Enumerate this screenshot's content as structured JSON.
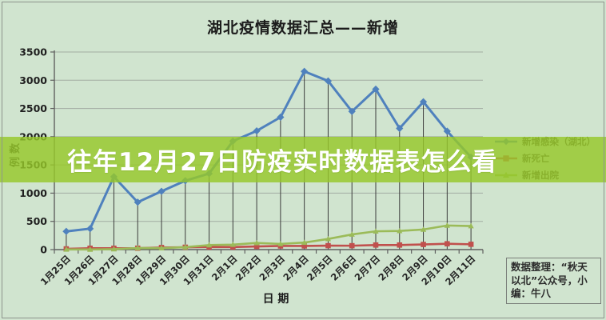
{
  "chart_data": {
    "type": "line",
    "title": "湖北疫情数据汇总——新增",
    "xlabel": "日 期",
    "ylabel": "例数",
    "ylim": [
      0,
      3500
    ],
    "ytick_step": 500,
    "grid": true,
    "drop_lines": true,
    "legend_position": "right",
    "categories": [
      "1月25日",
      "1月26日",
      "1月27日",
      "1月28日",
      "1月29日",
      "1月30日",
      "1月31日",
      "2月1日",
      "2月2日",
      "2月3日",
      "2月4日",
      "2月5日",
      "2月6日",
      "2月7日",
      "2月8日",
      "2月9日",
      "2月10日",
      "2月11日"
    ],
    "series": [
      {
        "name": "新增感染（湖北）",
        "color": "#4f81bd",
        "marker": "diamond",
        "values": [
          323,
          371,
          1291,
          840,
          1032,
          1220,
          1347,
          1921,
          2103,
          2345,
          3156,
          2987,
          2447,
          2841,
          2147,
          2618,
          2097,
          1638
        ]
      },
      {
        "name": "新死亡",
        "color": "#c0504d",
        "marker": "square",
        "values": [
          13,
          24,
          24,
          25,
          37,
          42,
          45,
          45,
          56,
          64,
          65,
          70,
          69,
          81,
          81,
          91,
          103,
          94
        ]
      },
      {
        "name": "新增出院",
        "color": "#9bbb59",
        "marker": "triangle",
        "values": [
          3,
          2,
          8,
          28,
          26,
          43,
          80,
          88,
          118,
          101,
          125,
          189,
          268,
          324,
          331,
          356,
          427,
          417
        ]
      }
    ]
  },
  "overlay": {
    "text": "往年12月27日防疫实时数据表怎么看",
    "band_color": "#96c82a",
    "text_color": "#ffffff"
  },
  "note": {
    "text": "数据整理：“秋天以北”公众号，小编：牛八"
  },
  "colors": {
    "background": "#d0e4cf",
    "gridline": "#a2aba2",
    "axis": "#606060",
    "drop_line": "#3c3c3c",
    "title_text": "#1c1c1c"
  }
}
